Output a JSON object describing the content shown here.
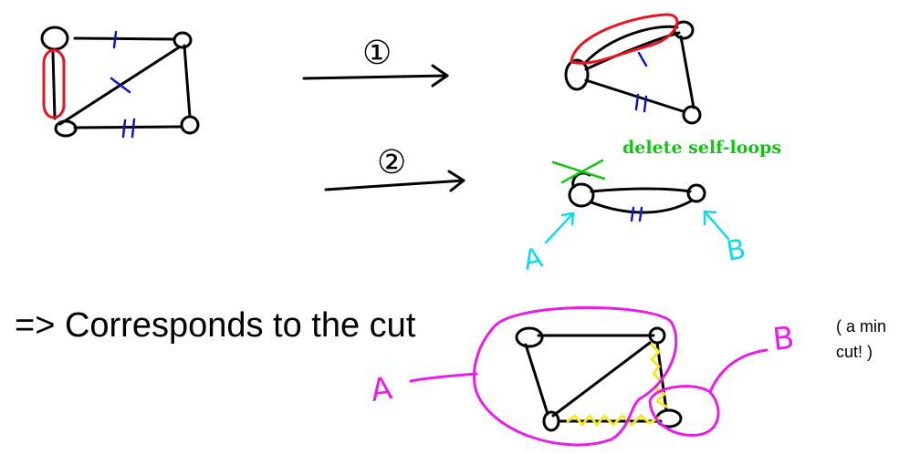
{
  "annotations": {
    "step_1": "①",
    "step_2": "②",
    "delete_note": "delete self-loops",
    "corresponds": "=> Corresponds to the cut",
    "min_cut_line1": "( a min",
    "min_cut_line2": "cut! )",
    "label_A": "A",
    "label_B": "B"
  },
  "colors": {
    "ink": "#000000",
    "edge_marks": "#1414c8",
    "contract_highlight": "#e8141e",
    "delete_note": "#12c412",
    "supernode_labels": "#14d8f0",
    "cut_partition": "#e61ee6",
    "cut_edges": "#f5e61e"
  }
}
